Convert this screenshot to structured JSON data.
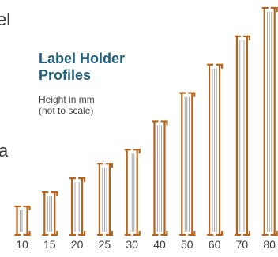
{
  "edge_text": [
    "el",
    "a"
  ],
  "title_lines": [
    "Label Holder",
    "Profiles"
  ],
  "subtitle_lines": [
    "Height in mm",
    "(not to scale)"
  ],
  "colors": {
    "profile": "#b5651d",
    "insert": "#9a9a9a",
    "heading": "#1f5f7c"
  },
  "chart_data": {
    "type": "bar",
    "title": "Label Holder Profiles",
    "subtitle": "Height in mm (not to scale)",
    "categories": [
      "10",
      "15",
      "20",
      "25",
      "30",
      "40",
      "50",
      "60",
      "70",
      "80"
    ],
    "values": [
      10,
      15,
      20,
      25,
      30,
      40,
      50,
      60,
      70,
      80
    ]
  }
}
